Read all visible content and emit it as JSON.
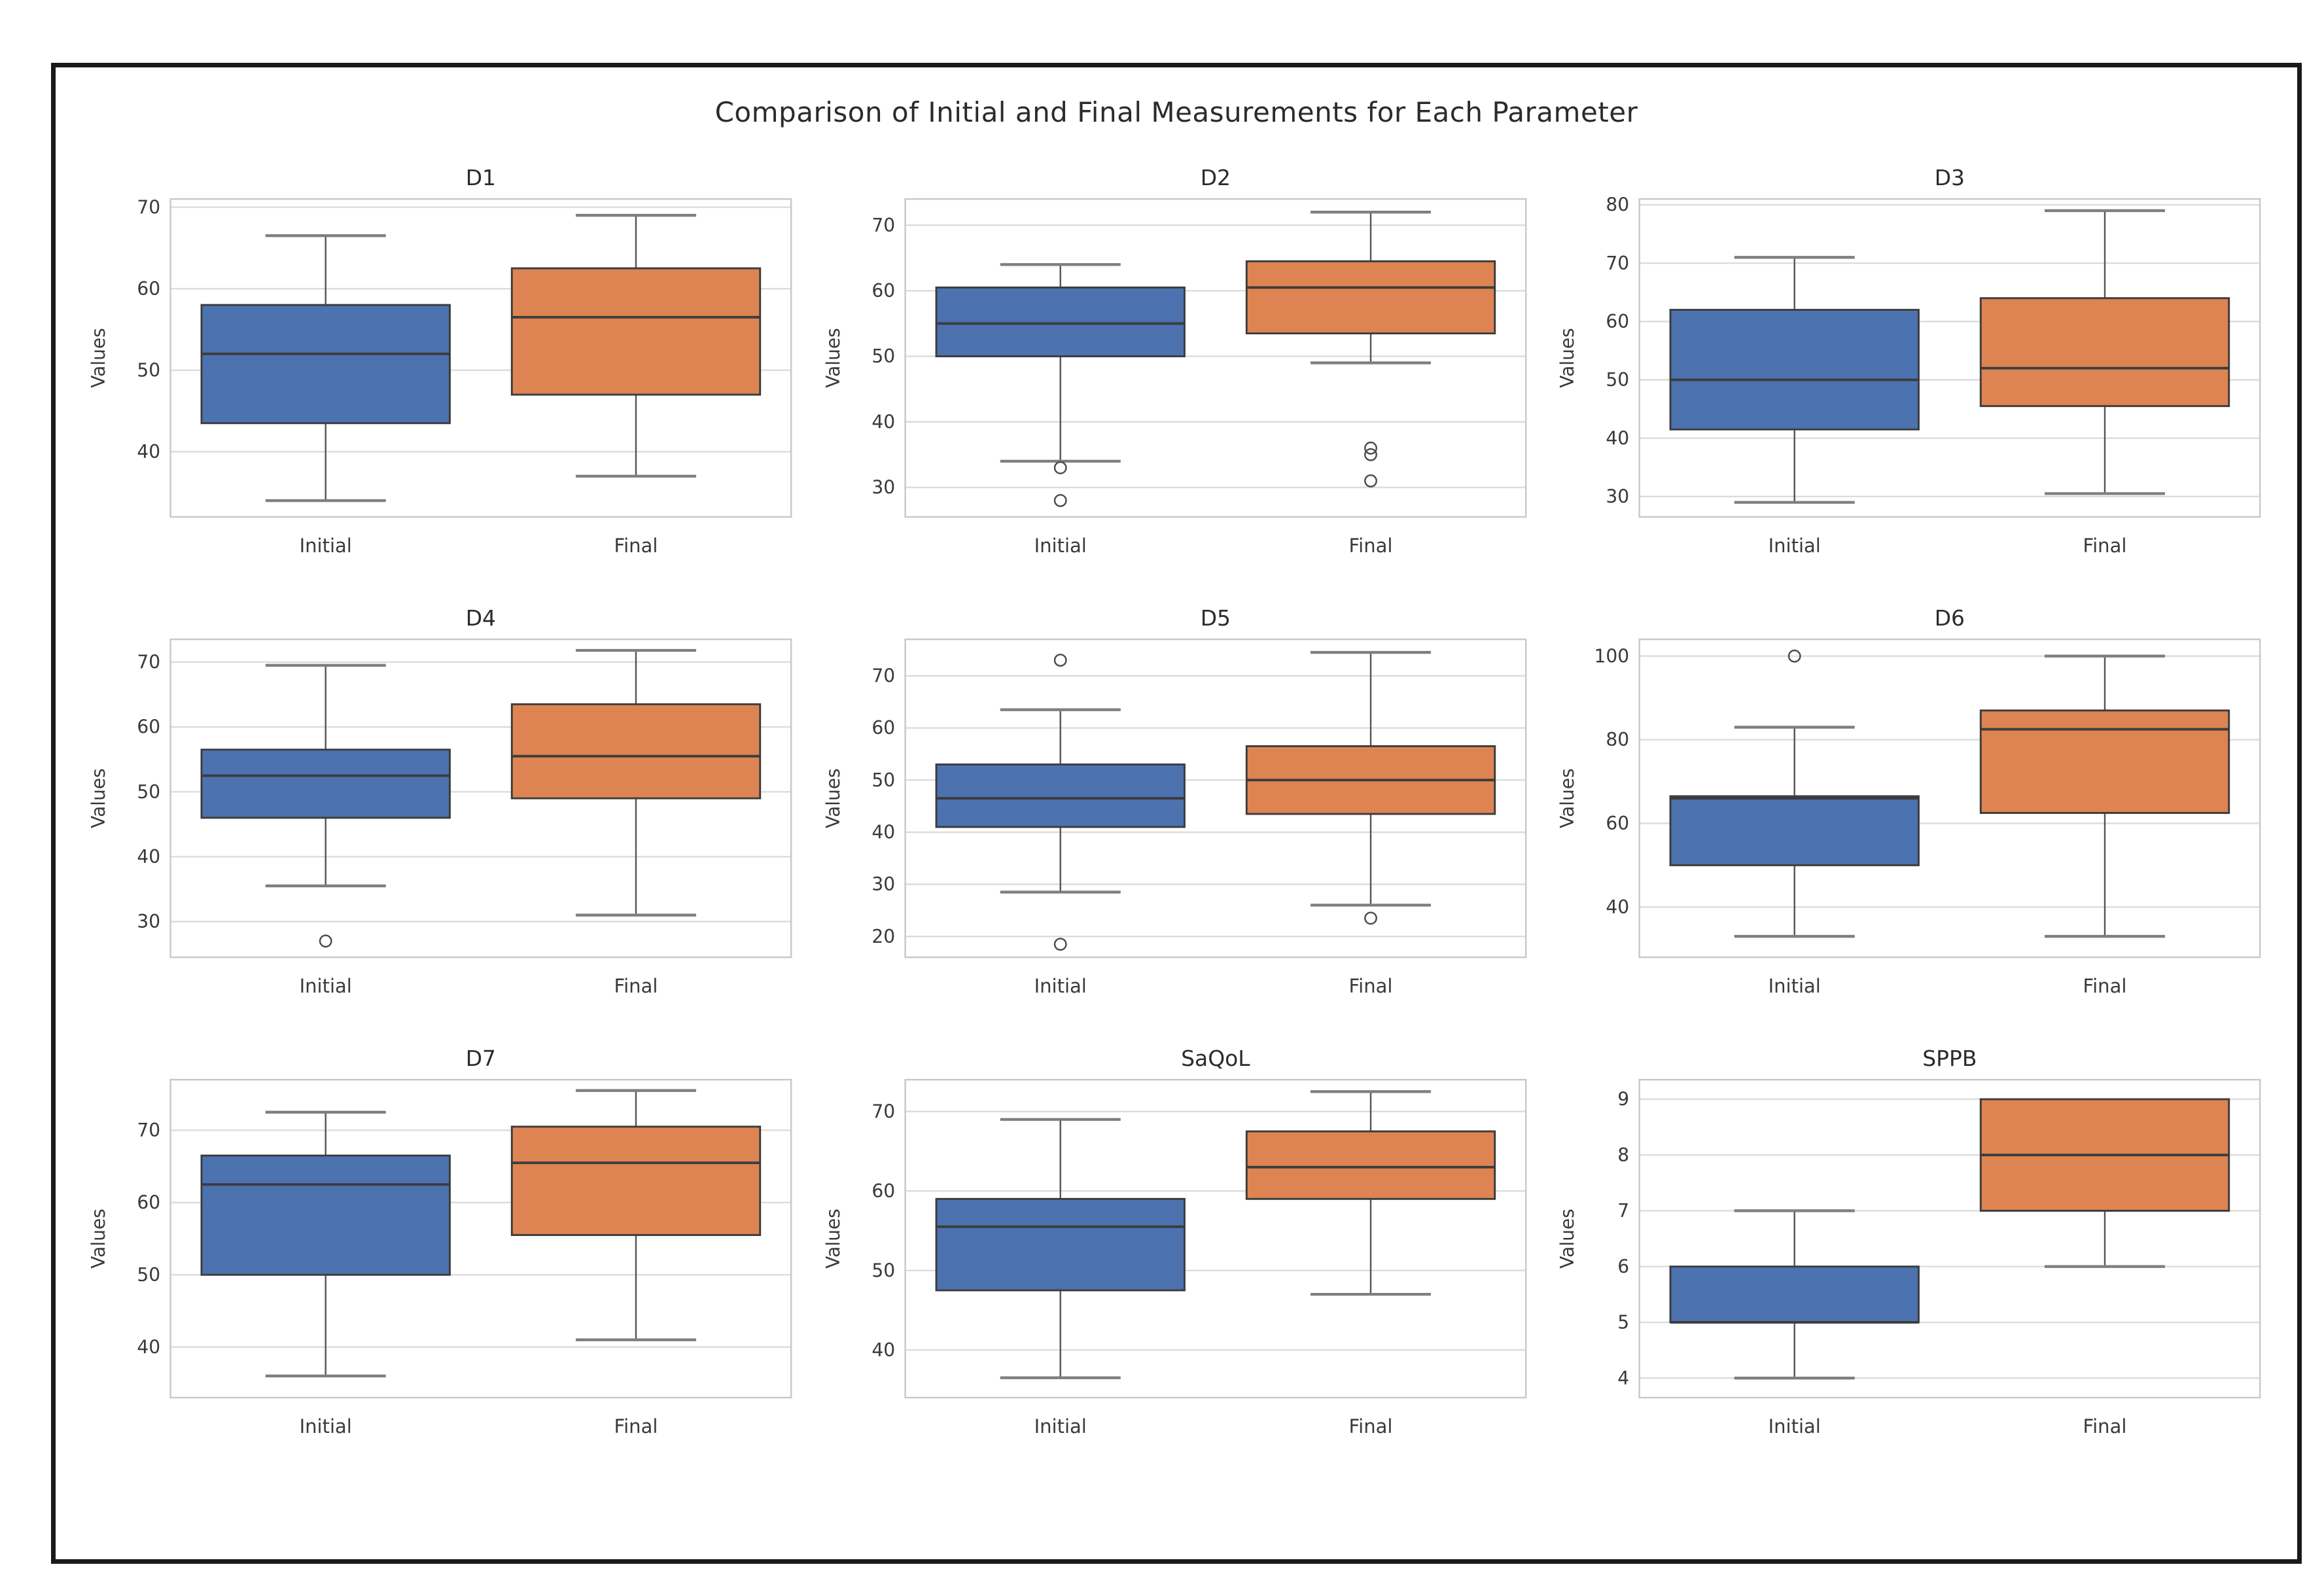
{
  "figure": {
    "title": "Comparison of Initial and Final Measurements for Each Parameter",
    "ylabel_text": "Values",
    "x_categories": [
      "Initial",
      "Final"
    ]
  },
  "palette": {
    "box_fills": [
      "#4C72B0",
      "#DD8452"
    ],
    "box_edge": "#3c3c3c",
    "median": "#3c3c3c",
    "whisker": "#555555",
    "cap": "#7f7f7f",
    "outlier_stroke": "#4a4a4a",
    "grid": "#dcdcdc",
    "spine": "#c8c8c8",
    "text": "#3a3a3a",
    "title_text": "#2b2b2b",
    "frame_border": "#1a1a1a",
    "background": "#ffffff"
  },
  "chart_data": [
    {
      "type": "box",
      "title": "D1",
      "ylabel": "Values",
      "categories": [
        "Initial",
        "Final"
      ],
      "yticks": [
        40,
        50,
        60,
        70
      ],
      "ylim": [
        32,
        71
      ],
      "grid": true,
      "series": [
        {
          "name": "Initial",
          "whislo": 34,
          "q1": 43.5,
          "med": 52,
          "q3": 58,
          "whishi": 66.5,
          "outliers": []
        },
        {
          "name": "Final",
          "whislo": 37,
          "q1": 47,
          "med": 56.5,
          "q3": 62.5,
          "whishi": 69,
          "outliers": []
        }
      ]
    },
    {
      "type": "box",
      "title": "D2",
      "ylabel": "Values",
      "categories": [
        "Initial",
        "Final"
      ],
      "yticks": [
        30,
        40,
        50,
        60,
        70
      ],
      "ylim": [
        25.5,
        74
      ],
      "grid": true,
      "series": [
        {
          "name": "Initial",
          "whislo": 34,
          "q1": 50,
          "med": 55,
          "q3": 60.5,
          "whishi": 64,
          "outliers": [
            33,
            28
          ]
        },
        {
          "name": "Final",
          "whislo": 49,
          "q1": 53.5,
          "med": 60.5,
          "q3": 64.5,
          "whishi": 72,
          "outliers": [
            36,
            35,
            31
          ]
        }
      ]
    },
    {
      "type": "box",
      "title": "D3",
      "ylabel": "Values",
      "categories": [
        "Initial",
        "Final"
      ],
      "yticks": [
        30,
        40,
        50,
        60,
        70,
        80
      ],
      "ylim": [
        26.5,
        81
      ],
      "grid": true,
      "series": [
        {
          "name": "Initial",
          "whislo": 29,
          "q1": 41.5,
          "med": 50,
          "q3": 62,
          "whishi": 71,
          "outliers": []
        },
        {
          "name": "Final",
          "whislo": 30.5,
          "q1": 45.5,
          "med": 52,
          "q3": 64,
          "whishi": 79,
          "outliers": []
        }
      ]
    },
    {
      "type": "box",
      "title": "D4",
      "ylabel": "Values",
      "categories": [
        "Initial",
        "Final"
      ],
      "yticks": [
        30,
        40,
        50,
        60,
        70
      ],
      "ylim": [
        24.5,
        73.5
      ],
      "grid": true,
      "series": [
        {
          "name": "Initial",
          "whislo": 35.5,
          "q1": 46,
          "med": 52.5,
          "q3": 56.5,
          "whishi": 69.5,
          "outliers": [
            27
          ]
        },
        {
          "name": "Final",
          "whislo": 31,
          "q1": 49,
          "med": 55.5,
          "q3": 63.5,
          "whishi": 71.8,
          "outliers": []
        }
      ]
    },
    {
      "type": "box",
      "title": "D5",
      "ylabel": "Values",
      "categories": [
        "Initial",
        "Final"
      ],
      "yticks": [
        20,
        30,
        40,
        50,
        60,
        70
      ],
      "ylim": [
        16,
        77
      ],
      "grid": true,
      "series": [
        {
          "name": "Initial",
          "whislo": 28.5,
          "q1": 41,
          "med": 46.5,
          "q3": 53,
          "whishi": 63.5,
          "outliers": [
            73,
            18.5
          ]
        },
        {
          "name": "Final",
          "whislo": 26,
          "q1": 43.5,
          "med": 50,
          "q3": 56.5,
          "whishi": 74.5,
          "outliers": [
            23.5
          ]
        }
      ]
    },
    {
      "type": "box",
      "title": "D6",
      "ylabel": "Values",
      "categories": [
        "Initial",
        "Final"
      ],
      "yticks": [
        40,
        60,
        80,
        100
      ],
      "ylim": [
        28,
        104
      ],
      "grid": true,
      "series": [
        {
          "name": "Initial",
          "whislo": 33,
          "q1": 50,
          "med": 66,
          "q3": 66.5,
          "whishi": 83,
          "outliers": [
            100
          ]
        },
        {
          "name": "Final",
          "whislo": 33,
          "q1": 62.5,
          "med": 82.5,
          "q3": 87,
          "whishi": 100,
          "outliers": []
        }
      ]
    },
    {
      "type": "box",
      "title": "D7",
      "ylabel": "Values",
      "categories": [
        "Initial",
        "Final"
      ],
      "yticks": [
        40,
        50,
        60,
        70
      ],
      "ylim": [
        33,
        77
      ],
      "grid": true,
      "series": [
        {
          "name": "Initial",
          "whislo": 36,
          "q1": 50,
          "med": 62.5,
          "q3": 66.5,
          "whishi": 72.5,
          "outliers": []
        },
        {
          "name": "Final",
          "whislo": 41,
          "q1": 55.5,
          "med": 65.5,
          "q3": 70.5,
          "whishi": 75.5,
          "outliers": []
        }
      ]
    },
    {
      "type": "box",
      "title": "SaQoL",
      "ylabel": "Values",
      "categories": [
        "Initial",
        "Final"
      ],
      "yticks": [
        40,
        50,
        60,
        70
      ],
      "ylim": [
        34,
        74
      ],
      "grid": true,
      "series": [
        {
          "name": "Initial",
          "whislo": 36.5,
          "q1": 47.5,
          "med": 55.5,
          "q3": 59,
          "whishi": 69,
          "outliers": []
        },
        {
          "name": "Final",
          "whislo": 47,
          "q1": 59,
          "med": 63,
          "q3": 67.5,
          "whishi": 72.5,
          "outliers": []
        }
      ]
    },
    {
      "type": "box",
      "title": "SPPB",
      "ylabel": "Values",
      "categories": [
        "Initial",
        "Final"
      ],
      "yticks": [
        4,
        5,
        6,
        7,
        8,
        9
      ],
      "ylim": [
        3.65,
        9.35
      ],
      "grid": true,
      "series": [
        {
          "name": "Initial",
          "whislo": 4,
          "q1": 5,
          "med": 5,
          "q3": 6,
          "whishi": 7,
          "outliers": []
        },
        {
          "name": "Final",
          "whislo": 6,
          "q1": 7,
          "med": 8,
          "q3": 9,
          "whishi": 9,
          "outliers": []
        }
      ]
    }
  ]
}
